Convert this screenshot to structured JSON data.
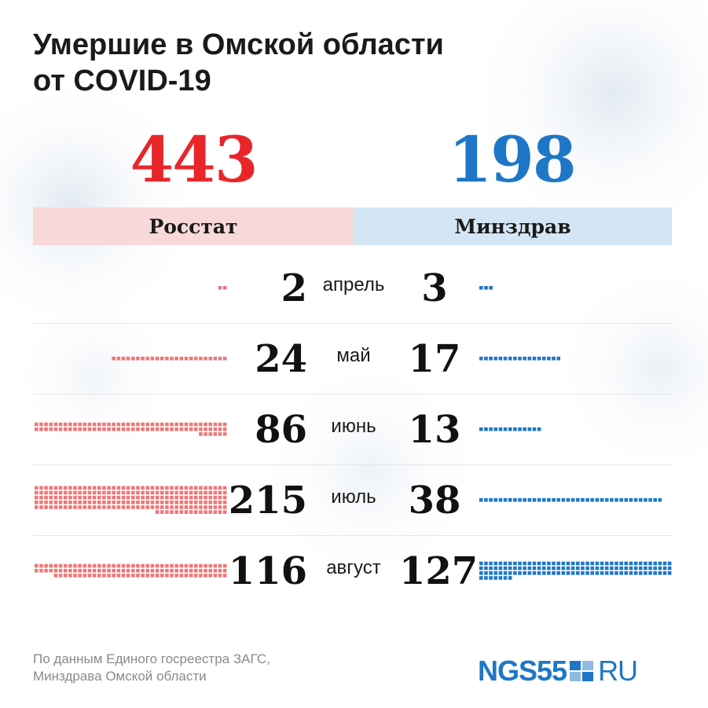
{
  "title": {
    "line1": "Умершие в Омской области",
    "line2": "от COVID-19"
  },
  "colors": {
    "rosstat": "#e8262a",
    "minzdrav": "#1e77c6",
    "rosstat_band": "#f8d8d9",
    "minzdrav_band": "#d4e6f5",
    "rosstat_mark": "#ef7777",
    "minzdrav_mark": "#1e77c6"
  },
  "totals": {
    "rosstat": "443",
    "minzdrav": "198"
  },
  "sources": {
    "rosstat": "Росстат",
    "minzdrav": "Минздрав"
  },
  "chart_data": {
    "type": "table",
    "categories": [
      "апрель",
      "май",
      "июнь",
      "июль",
      "август"
    ],
    "series": [
      {
        "name": "Росстат",
        "values": [
          2,
          24,
          86,
          215,
          116
        ]
      },
      {
        "name": "Минздрав",
        "values": [
          3,
          17,
          13,
          38,
          127
        ]
      }
    ]
  },
  "footnote": {
    "line1": "По данным Единого госреестра ЗАГС,",
    "line2": "Минздрава Омской области"
  },
  "logo": {
    "left": "NGS55",
    "right": "RU",
    "icon": "ngs-square-icon"
  }
}
